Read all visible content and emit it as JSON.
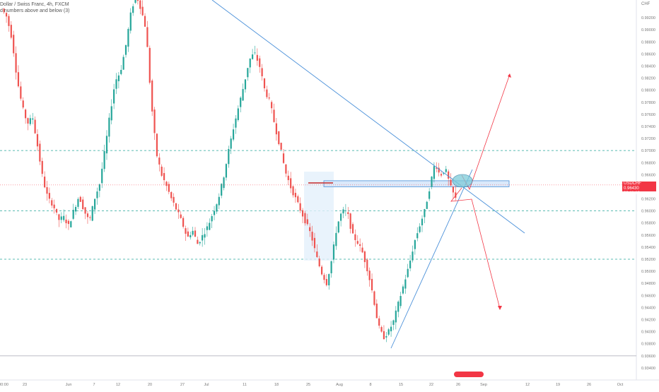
{
  "legend": {
    "symbol": "Dollar / Swiss Franc, 4h, FXCM",
    "indicator": "d numbers above and below (3)"
  },
  "currency": "CHF",
  "price_tag": {
    "symbol": "USDCHF",
    "price": "0.96430",
    "countdown": "03:11:18"
  },
  "chart_data": {
    "type": "candlestick",
    "title": "Dollar / Swiss Franc, 4h, FXCM",
    "xlabel": "",
    "ylabel": "",
    "ylim": [
      0.932,
      0.994
    ],
    "y_ticks": [
      "0.99200",
      "0.99000",
      "0.98800",
      "0.98600",
      "0.98400",
      "0.98200",
      "0.98000",
      "0.97800",
      "0.97600",
      "0.97400",
      "0.97200",
      "0.97000",
      "0.96800",
      "0.96600",
      "0.96400",
      "0.96200",
      "0.96000",
      "0.95800",
      "0.95600",
      "0.95400",
      "0.95200",
      "0.95000",
      "0.94800",
      "0.94600",
      "0.94400",
      "0.94200",
      "0.94000",
      "0.93800",
      "0.93600",
      "0.93400"
    ],
    "x_ticks": [
      "00:00",
      "23",
      "Jun",
      "7",
      "12",
      "20",
      "27",
      "Jul",
      "11",
      "18",
      "25",
      "Aug",
      "8",
      "15",
      "22",
      "26",
      "Sep",
      "12",
      "19",
      "26",
      "Oct"
    ],
    "grid": false,
    "colors": {
      "up": "#26a69a",
      "down": "#ef5350",
      "trendline": "#4a90d9",
      "projection": "#f23645",
      "level": "#26a69a"
    },
    "path_points": [
      0.9935,
      0.9921,
      0.9885,
      0.9818,
      0.9772,
      0.9745,
      0.9755,
      0.9705,
      0.9652,
      0.962,
      0.961,
      0.9585,
      0.959,
      0.9575,
      0.9602,
      0.9625,
      0.96,
      0.9582,
      0.962,
      0.9645,
      0.97,
      0.976,
      0.9815,
      0.983,
      0.987,
      0.9925,
      0.996,
      0.9935,
      0.99,
      0.978,
      0.9695,
      0.966,
      0.964,
      0.9618,
      0.96,
      0.958,
      0.9555,
      0.9568,
      0.9545,
      0.956,
      0.9575,
      0.9598,
      0.962,
      0.9655,
      0.97,
      0.974,
      0.9775,
      0.981,
      0.985,
      0.9862,
      0.984,
      0.98,
      0.978,
      0.974,
      0.9705,
      0.9665,
      0.964,
      0.962,
      0.96,
      0.958,
      0.956,
      0.9525,
      0.9498,
      0.948,
      0.952,
      0.9575,
      0.96,
      0.9598,
      0.956,
      0.9548,
      0.953,
      0.95,
      0.946,
      0.941,
      0.939,
      0.94,
      0.9418,
      0.945,
      0.948,
      0.951,
      0.9548,
      0.9575,
      0.96,
      0.964,
      0.968,
      0.9658,
      0.967,
      0.964,
      0.962
    ],
    "horizontal_levels": [
      0.97,
      0.96,
      0.952,
      0.936
    ],
    "resistance_zone": [
      0.964,
      0.965
    ],
    "current_price": 0.9643
  }
}
